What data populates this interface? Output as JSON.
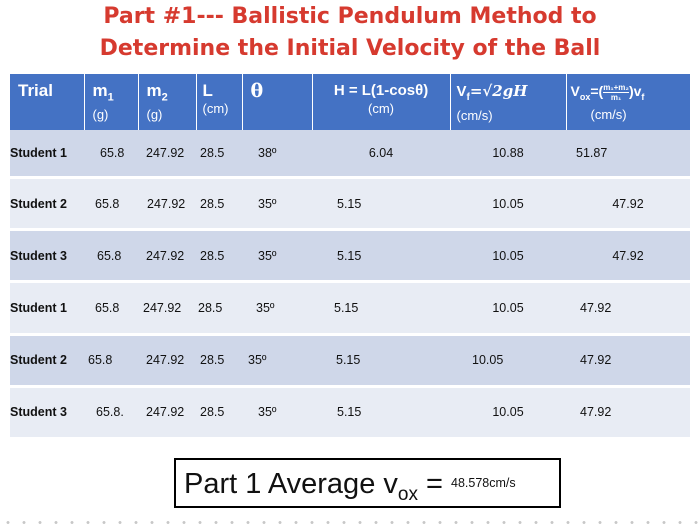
{
  "title": {
    "line1": "Part #1--- Ballistic Pendulum Method to",
    "line2": "Determine the Initial  Velocity of the Ball"
  },
  "table": {
    "headers": [
      {
        "main": "Trial",
        "sub": ""
      },
      {
        "main": "m",
        "main_sub": "1",
        "sub": "(g)"
      },
      {
        "main": "m",
        "main_sub": "2",
        "sub": "(g)"
      },
      {
        "main": "L",
        "sub": "(cm)"
      },
      {
        "main": "θ",
        "sub": ""
      },
      {
        "main": "H = L(1-cosθ)",
        "sub": "(cm)"
      },
      {
        "main": "V",
        "main_sub": "f",
        "formula": "=√2gH",
        "sub": "(cm/s)"
      },
      {
        "main": "V",
        "main_sub": "ox",
        "formula": "=(",
        "frac_num": "m₁+m₂",
        "frac_den": "m₁",
        "formula_end": ")v",
        "formula_end_sub": "f",
        "sub": "(cm/s)"
      }
    ],
    "rows": [
      {
        "trial": "Student 1",
        "m1": "65.8",
        "m2": "247.92",
        "L": "28.5",
        "theta": "38º",
        "H": "6.04",
        "vf": "10.88",
        "vox": "51.87"
      },
      {
        "trial": "Student 2",
        "m1": "65.8",
        "m2": "247.92",
        "L": "28.5",
        "theta": "35º",
        "H": "5.15",
        "vf": "10.05",
        "vox": "47.92"
      },
      {
        "trial": "Student 3",
        "m1": "65.8",
        "m2": "247.92",
        "L": "28.5",
        "theta": "35º",
        "H": "5.15",
        "vf": "10.05",
        "vox": "47.92"
      },
      {
        "trial": "Student 1",
        "m1": "65.8",
        "m2": "247.92",
        "L": "28.5",
        "theta": "35º",
        "H": "5.15",
        "vf": "10.05",
        "vox": "47.92"
      },
      {
        "trial": "Student 2",
        "m1": "65.8",
        "m2": "247.92",
        "L": "28.5",
        "theta": "35º",
        "H": "5.15",
        "vf": "10.05",
        "vox": "47.92"
      },
      {
        "trial": "Student 3",
        "m1": "65.8.",
        "m2": "247.92",
        "L": "28.5",
        "theta": "35º",
        "H": "5.15",
        "vf": "10.05",
        "vox": "47.92"
      }
    ]
  },
  "average": {
    "label": "Part 1 Average v",
    "label_sub": "ox",
    "equals": " = ",
    "value": "48.578cm/s"
  },
  "colors": {
    "title": "#d63a2f",
    "header_bg": "#4472c4",
    "row_dark": "#cfd7e9",
    "row_light": "#e8ecf4"
  }
}
